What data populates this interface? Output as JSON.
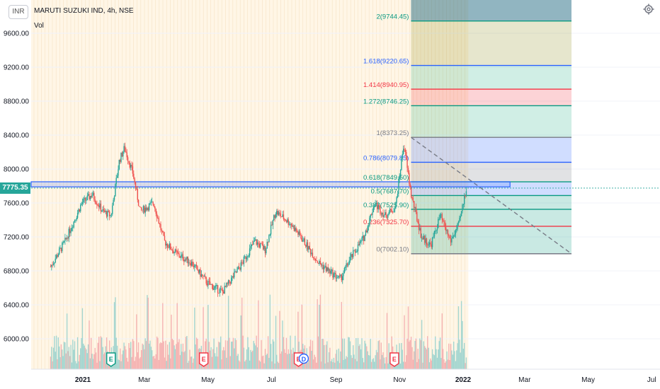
{
  "header": {
    "currency": "INR",
    "symbol": "MARUTI SUZUKI IND, 4h, NSE",
    "volume_label": "Vol",
    "last_price": "7775.35"
  },
  "colors": {
    "up": "#26a69a",
    "down": "#ef5350",
    "grid": "#f0f3fa",
    "session_bg": "#fff6e6",
    "highlight_zone": "#2962ff"
  },
  "chart_data": {
    "type": "candlestick",
    "title": "MARUTI SUZUKI IND, 4h, NSE",
    "y_ticks": [
      "9600.00",
      "9200.00",
      "8800.00",
      "8400.00",
      "8000.00",
      "7600.00",
      "7200.00",
      "6800.00",
      "6400.00",
      "6000.00"
    ],
    "ylim": [
      5730,
      10180
    ],
    "x_ticks": [
      "2021",
      "Mar",
      "May",
      "Jul",
      "Sep",
      "Nov",
      "2022",
      "Mar",
      "May",
      "Jul"
    ],
    "price_path": [
      [
        "2020-12-01",
        6850
      ],
      [
        "2020-12-15",
        7150
      ],
      [
        "2020-12-31",
        7600
      ],
      [
        "2021-01-10",
        7700
      ],
      [
        "2021-01-20",
        7500
      ],
      [
        "2021-01-28",
        7450
      ],
      [
        "2021-02-05",
        8100
      ],
      [
        "2021-02-10",
        8250
      ],
      [
        "2021-02-18",
        7950
      ],
      [
        "2021-02-25",
        7500
      ],
      [
        "2021-03-10",
        7600
      ],
      [
        "2021-03-20",
        7150
      ],
      [
        "2021-04-01",
        7000
      ],
      [
        "2021-04-15",
        6900
      ],
      [
        "2021-05-01",
        6650
      ],
      [
        "2021-05-15",
        6550
      ],
      [
        "2021-06-01",
        6850
      ],
      [
        "2021-06-15",
        7150
      ],
      [
        "2021-06-25",
        7050
      ],
      [
        "2021-07-05",
        7500
      ],
      [
        "2021-07-20",
        7350
      ],
      [
        "2021-08-01",
        7150
      ],
      [
        "2021-08-15",
        6900
      ],
      [
        "2021-08-25",
        6800
      ],
      [
        "2021-09-05",
        6700
      ],
      [
        "2021-09-15",
        6950
      ],
      [
        "2021-09-28",
        7200
      ],
      [
        "2021-10-08",
        7600
      ],
      [
        "2021-10-18",
        7450
      ],
      [
        "2021-10-28",
        7550
      ],
      [
        "2021-11-05",
        8300
      ],
      [
        "2021-11-12",
        7700
      ],
      [
        "2021-11-22",
        7200
      ],
      [
        "2021-12-01",
        7100
      ],
      [
        "2021-12-10",
        7450
      ],
      [
        "2021-12-20",
        7150
      ],
      [
        "2021-12-28",
        7350
      ],
      [
        "2022-01-04",
        7775
      ]
    ],
    "fibonacci": {
      "levels": [
        {
          "label": "2(9744.45)",
          "value": 9744.45,
          "color": "#089981"
        },
        {
          "label": "1.618(9220.65)",
          "value": 9220.65,
          "color": "#2962ff"
        },
        {
          "label": "1.414(8940.95)",
          "value": 8940.95,
          "color": "#f23645"
        },
        {
          "label": "1.272(8746.25)",
          "value": 8746.25,
          "color": "#089981"
        },
        {
          "label": "1(8373.25)",
          "value": 8373.25,
          "color": "#787b86"
        },
        {
          "label": "0.786(8079.85)",
          "value": 8079.85,
          "color": "#2962ff"
        },
        {
          "label": "0.618(7849.50)",
          "value": 7849.5,
          "color": "#089981"
        },
        {
          "label": "0.5(7687.70)",
          "value": 7687.7,
          "color": "#089981"
        },
        {
          "label": "0.382(7525.90)",
          "value": 7525.9,
          "color": "#089981"
        },
        {
          "label": "0.236(7325.70)",
          "value": 7325.7,
          "color": "#f23645"
        },
        {
          "label": "0(7002.10)",
          "value": 7002.1,
          "color": "#787b86"
        }
      ],
      "start": "2021-11-12",
      "end": "2022-04-15"
    },
    "highlight_zone": {
      "low": 7790,
      "high": 7850
    },
    "event_markers": [
      {
        "label": "E",
        "date": "2021-01-28",
        "color": "#089981"
      },
      {
        "label": "E",
        "date": "2021-04-27",
        "color": "#f23645"
      },
      {
        "label": "E",
        "date": "2021-07-27",
        "color": "#f23645"
      },
      {
        "label": "D",
        "date": "2021-08-01",
        "color": "#2962ff"
      },
      {
        "label": "E",
        "date": "2021-10-27",
        "color": "#f23645"
      }
    ]
  }
}
